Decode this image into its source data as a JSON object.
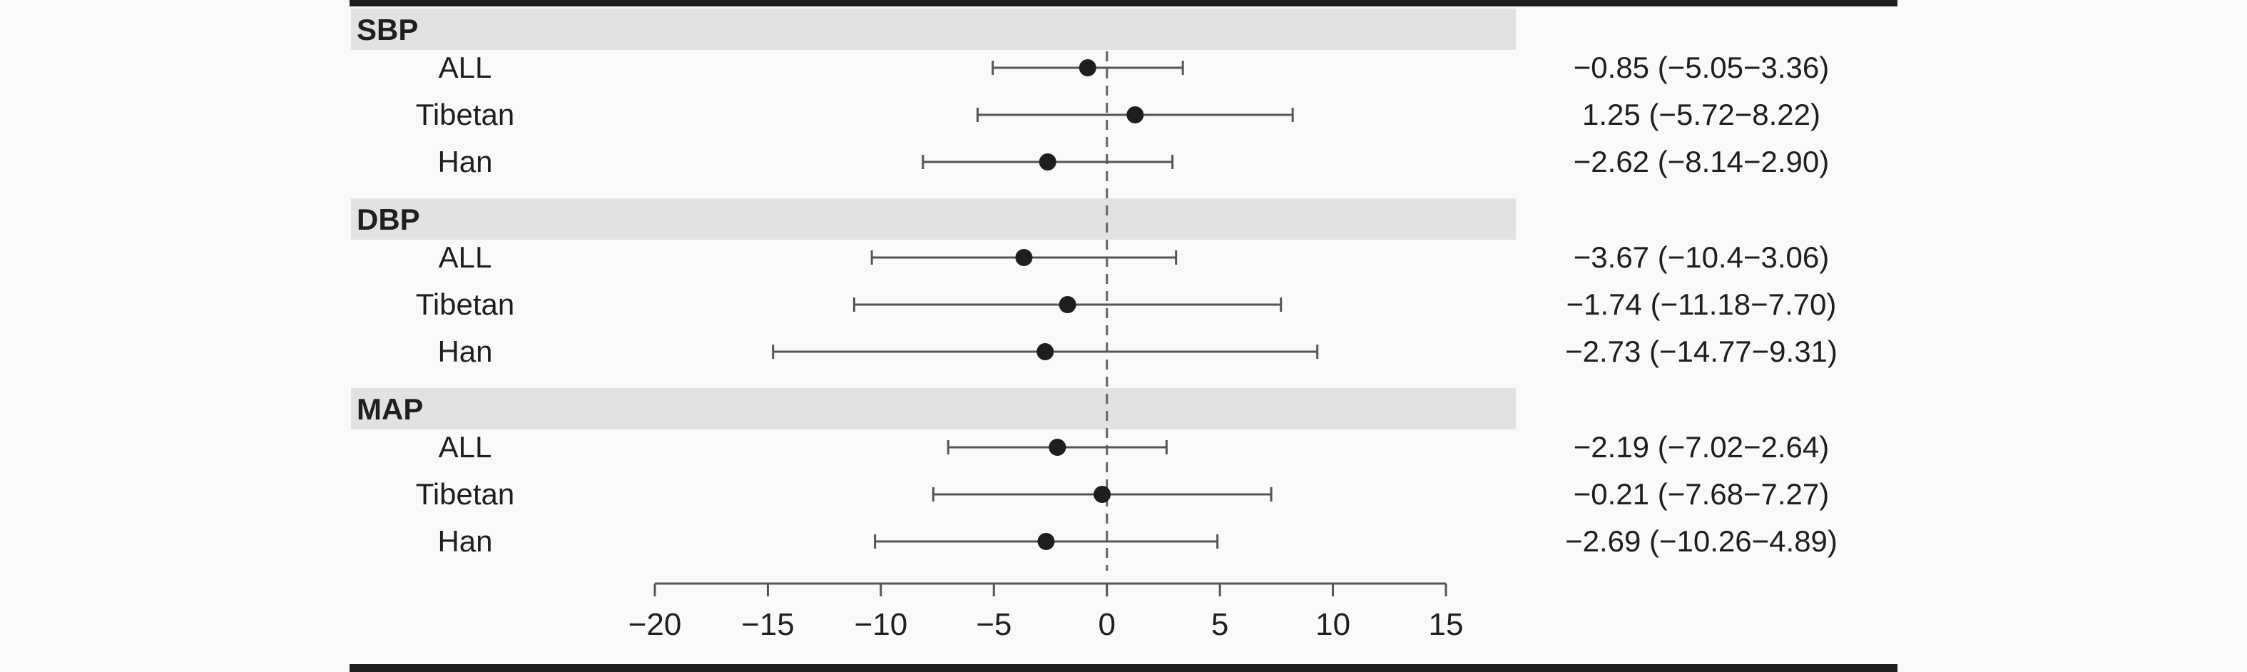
{
  "colors": {
    "background": "#f9f9f9",
    "header_band": "#e2e2e2",
    "frame_bar": "#1e1e1e",
    "marker": "#1e1e1e",
    "whisker": "#555555",
    "reference_line": "#666666"
  },
  "chart_data": {
    "type": "forest",
    "title": "",
    "xlabel": "",
    "ylabel": "",
    "xlim": [
      -20,
      15
    ],
    "x_ticks": [
      -20,
      -15,
      -10,
      -5,
      0,
      5,
      10,
      15
    ],
    "x_tick_labels": [
      "−20",
      "−15",
      "−10",
      "−5",
      "0",
      "5",
      "10",
      "15"
    ],
    "reference_line": 0,
    "reference_line_style": "dashed",
    "marker_style": "filled circle",
    "groups": [
      {
        "name": "SBP",
        "rows": [
          {
            "label": "ALL",
            "estimate": -0.85,
            "lower": -5.05,
            "upper": 3.36,
            "ci_text": "−0.85 (−5.05−3.36)"
          },
          {
            "label": "Tibetan",
            "estimate": 1.25,
            "lower": -5.72,
            "upper": 8.22,
            "ci_text": "1.25 (−5.72−8.22)"
          },
          {
            "label": "Han",
            "estimate": -2.62,
            "lower": -8.14,
            "upper": 2.9,
            "ci_text": "−2.62 (−8.14−2.90)"
          }
        ]
      },
      {
        "name": "DBP",
        "rows": [
          {
            "label": "ALL",
            "estimate": -3.67,
            "lower": -10.4,
            "upper": 3.06,
            "ci_text": "−3.67 (−10.4−3.06)"
          },
          {
            "label": "Tibetan",
            "estimate": -1.74,
            "lower": -11.18,
            "upper": 7.7,
            "ci_text": "−1.74 (−11.18−7.70)"
          },
          {
            "label": "Han",
            "estimate": -2.73,
            "lower": -14.77,
            "upper": 9.31,
            "ci_text": "−2.73 (−14.77−9.31)"
          }
        ]
      },
      {
        "name": "MAP",
        "rows": [
          {
            "label": "ALL",
            "estimate": -2.19,
            "lower": -7.02,
            "upper": 2.64,
            "ci_text": "−2.19 (−7.02−2.64)"
          },
          {
            "label": "Tibetan",
            "estimate": -0.21,
            "lower": -7.68,
            "upper": 7.27,
            "ci_text": "−0.21 (−7.68−7.27)"
          },
          {
            "label": "Han",
            "estimate": -2.69,
            "lower": -10.26,
            "upper": 4.89,
            "ci_text": "−2.69 (−10.26−4.89)"
          }
        ]
      }
    ]
  }
}
